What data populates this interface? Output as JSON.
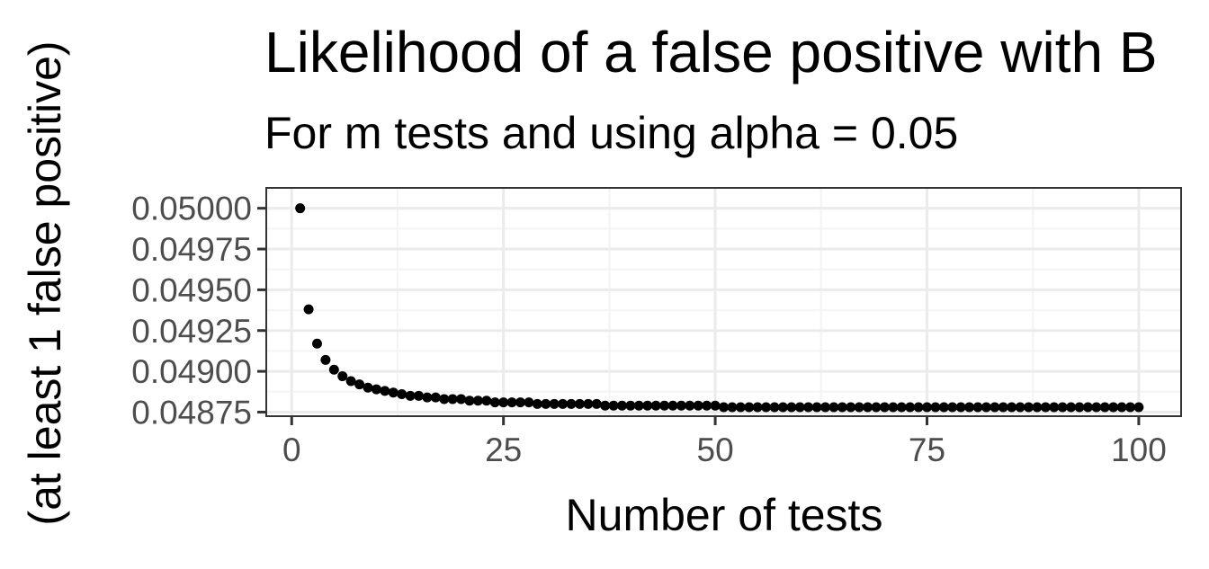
{
  "chart_data": {
    "type": "scatter",
    "title": "Likelihood of a false positive with B",
    "subtitle": "For m tests and using alpha = 0.05",
    "xlabel": "Number of tests",
    "ylabel": "(at least 1 false positive)",
    "xlim": [
      -3,
      105
    ],
    "ylim": [
      0.048725,
      0.050125
    ],
    "x_ticks": [
      0,
      25,
      50,
      75,
      100
    ],
    "x_tick_labels": [
      "0",
      "25",
      "50",
      "75",
      "100"
    ],
    "y_ticks": [
      0.04875,
      0.049,
      0.04925,
      0.0495,
      0.04975,
      0.05
    ],
    "y_tick_labels": [
      "0.04875",
      "0.04900",
      "0.04925",
      "0.04950",
      "0.04975",
      "0.05000"
    ],
    "grid": true,
    "alpha": 0.05,
    "x": [
      1,
      2,
      3,
      4,
      5,
      6,
      7,
      8,
      9,
      10,
      11,
      12,
      13,
      14,
      15,
      16,
      17,
      18,
      19,
      20,
      21,
      22,
      23,
      24,
      25,
      26,
      27,
      28,
      29,
      30,
      31,
      32,
      33,
      34,
      35,
      36,
      37,
      38,
      39,
      40,
      41,
      42,
      43,
      44,
      45,
      46,
      47,
      48,
      49,
      50,
      51,
      52,
      53,
      54,
      55,
      56,
      57,
      58,
      59,
      60,
      61,
      62,
      63,
      64,
      65,
      66,
      67,
      68,
      69,
      70,
      71,
      72,
      73,
      74,
      75,
      76,
      77,
      78,
      79,
      80,
      81,
      82,
      83,
      84,
      85,
      86,
      87,
      88,
      89,
      90,
      91,
      92,
      93,
      94,
      95,
      96,
      97,
      98,
      99,
      100
    ],
    "y": [
      0.05,
      0.04938,
      0.04917,
      0.04907,
      0.04901,
      0.04897,
      0.04894,
      0.04892,
      0.0489,
      0.04889,
      0.04888,
      0.04887,
      0.04886,
      0.04885,
      0.04885,
      0.04884,
      0.04884,
      0.04883,
      0.04883,
      0.04883,
      0.04882,
      0.04882,
      0.04882,
      0.04881,
      0.04881,
      0.04881,
      0.04881,
      0.04881,
      0.0488,
      0.0488,
      0.0488,
      0.0488,
      0.0488,
      0.0488,
      0.0488,
      0.0488,
      0.04879,
      0.04879,
      0.04879,
      0.04879,
      0.04879,
      0.04879,
      0.04879,
      0.04879,
      0.04879,
      0.04879,
      0.04879,
      0.04879,
      0.04879,
      0.04879,
      0.04878,
      0.04878,
      0.04878,
      0.04878,
      0.04878,
      0.04878,
      0.04878,
      0.04878,
      0.04878,
      0.04878,
      0.04878,
      0.04878,
      0.04878,
      0.04878,
      0.04878,
      0.04878,
      0.04878,
      0.04878,
      0.04878,
      0.04878,
      0.04878,
      0.04878,
      0.04878,
      0.04878,
      0.04878,
      0.04878,
      0.04878,
      0.04878,
      0.04878,
      0.04878,
      0.04878,
      0.04878,
      0.04878,
      0.04878,
      0.04878,
      0.04878,
      0.04878,
      0.04878,
      0.04878,
      0.04878,
      0.04878,
      0.04878,
      0.04878,
      0.04878,
      0.04878,
      0.04878,
      0.04878,
      0.04878,
      0.04878,
      0.04878
    ],
    "colors": {
      "point": "#000000",
      "grid_major": "#ebebeb",
      "grid_minor": "#f4f4f4",
      "border": "#333333",
      "tick_text": "#4d4d4d"
    }
  }
}
